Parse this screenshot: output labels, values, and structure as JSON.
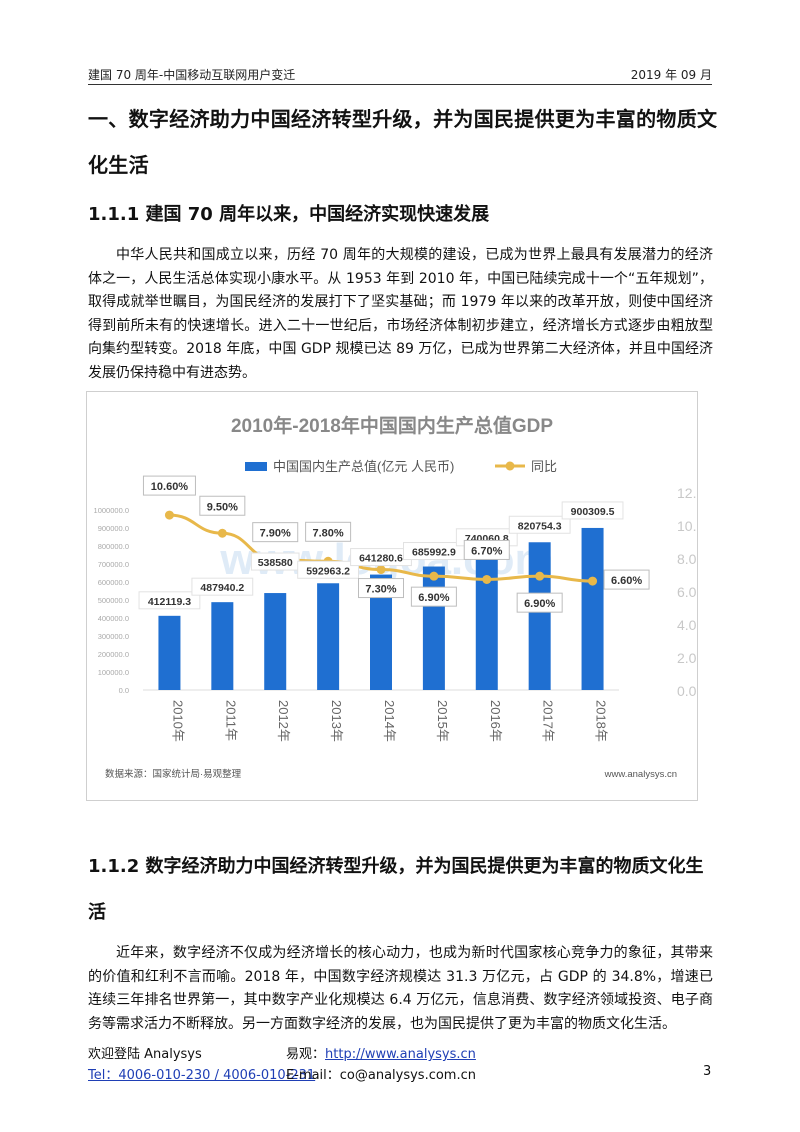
{
  "header": {
    "left": "建国 70 周年-中国移动互联网用户变迁",
    "right": "2019 年 09 月"
  },
  "h1_title": "一、数字经济助力中国经济转型升级，并为国民提供更为丰富的物质文化生活",
  "section1": {
    "title": "1.1.1  建国 70 周年以来，中国经济实现快速发展",
    "paragraph": "中华人民共和国成立以来，历经 70 周年的大规模的建设，已成为世界上最具有发展潜力的经济体之一，人民生活总体实现小康水平。从 1953 年到 2010 年，中国已陆续完成十一个“五年规划”，取得成就举世瞩目，为国民经济的发展打下了坚实基础；而 1979 年以来的改革开放，则使中国经济得到前所未有的快速增长。进入二十一世纪后，市场经济体制初步建立，经济增长方式逐步由粗放型向集约型转变。2018 年底，中国 GDP 规模已达 89 万亿，已成为世界第二大经济体，并且中国经济发展仍保持稳中有进态势。"
  },
  "chart_data": {
    "type": "bar+line",
    "title": "2010年-2018年中国国内生产总值GDP",
    "categories": [
      "2010年",
      "2011年",
      "2012年",
      "2013年",
      "2014年",
      "2015年",
      "2016年",
      "2017年",
      "2018年"
    ],
    "series": [
      {
        "name": "中国国内生产总值(亿元 人民币)",
        "type": "bar",
        "axis": "left",
        "values": [
          412119.3,
          487940.2,
          538580,
          592963.2,
          641280.6,
          685992.9,
          740060.8,
          820754.3,
          900309.5
        ],
        "labels": [
          "412119.3",
          "487940.2",
          "538580",
          "592963.2",
          "641280.6",
          "685992.9",
          "740060.8",
          "820754.3",
          "900309.5"
        ]
      },
      {
        "name": "同比",
        "type": "line",
        "axis": "right",
        "values": [
          10.6,
          9.5,
          7.9,
          7.8,
          7.3,
          6.9,
          6.7,
          6.9,
          6.6
        ],
        "labels": [
          "10.60%",
          "9.50%",
          "7.90%",
          "7.80%",
          "7.30%",
          "6.90%",
          "6.70%",
          "6.90%",
          "6.60%"
        ]
      }
    ],
    "left_axis": {
      "min": 0,
      "max": 1100000,
      "step": 100000,
      "ticks": [
        "0.0",
        "100000.0",
        "200000.0",
        "300000.0",
        "400000.0",
        "500000.0",
        "600000.0",
        "700000.0",
        "800000.0",
        "900000.0",
        "1000000.0"
      ]
    },
    "right_axis": {
      "min": 0,
      "max": 12,
      "step": 2,
      "ticks": [
        "0.00%",
        "2.00%",
        "4.00%",
        "6.00%",
        "8.00%",
        "10.00%",
        "12.00%"
      ]
    },
    "legend_position": "top",
    "source": "数据来源：国家统计局·易观整理",
    "site": "www.analysys.cn",
    "watermark": "www.logoa.com",
    "colors": {
      "bar": "#1f6fd1",
      "line": "#e8b84a",
      "title": "#888888"
    }
  },
  "section2": {
    "title": "1.1.2  数字经济助力中国经济转型升级，并为国民提供更为丰富的物质文化生活",
    "paragraph": "近年来，数字经济不仅成为经济增长的核心动力，也成为新时代国家核心竞争力的象征，其带来的价值和红利不言而喻。2018 年，中国数字经济规模达 31.3 万亿元，占 GDP 的 34.8%，增速已连续三年排名世界第一，其中数字产业化规模达 6.4 万亿元，信息消费、数字经济领域投资、电子商务等需求活力不断释放。另一方面数字经济的发展，也为国民提供了更为丰富的物质文化生活。"
  },
  "footer": {
    "welcome": "欢迎登陆 Analysys",
    "yiguan_label": "易观：",
    "yiguan_url": "http://www.analysys.cn",
    "tel": "Tel：4006-010-230 / 4006-010-231",
    "email": "E-mail：co@analysys.com.cn",
    "page_number": "3"
  }
}
